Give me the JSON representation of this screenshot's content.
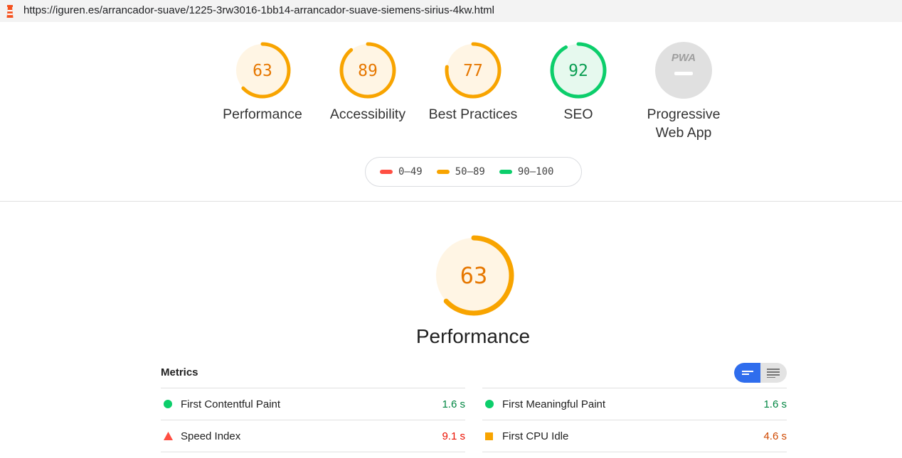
{
  "address_bar": {
    "url": "https://iguren.es/arrancador-suave/1225-3rw3016-1bb14-arrancador-suave-siemens-sirius-4kw.html"
  },
  "gauges": [
    {
      "score": "63",
      "label": "Performance",
      "fraction": 0.63,
      "color": "#f8a400",
      "bg": "#fff5e4"
    },
    {
      "score": "89",
      "label": "Accessibility",
      "fraction": 0.89,
      "color": "#f8a400",
      "bg": "#fff5e4"
    },
    {
      "score": "77",
      "label": "Best Practices",
      "fraction": 0.77,
      "color": "#f8a400",
      "bg": "#fff5e4"
    },
    {
      "score": "92",
      "label": "SEO",
      "fraction": 0.92,
      "color": "#0cce6b",
      "bg": "#e6f9ee"
    }
  ],
  "pwa": {
    "badge": "PWA",
    "label_line1": "Progressive",
    "label_line2": "Web App"
  },
  "legend": [
    {
      "range": "0–49",
      "color": "#ff4e42"
    },
    {
      "range": "50–89",
      "color": "#f8a400"
    },
    {
      "range": "90–100",
      "color": "#0cce6b"
    }
  ],
  "performance": {
    "score": "63",
    "title": "Performance",
    "fraction": 0.63
  },
  "metrics": {
    "heading": "Metrics",
    "items": [
      {
        "name": "First Contentful Paint",
        "value": "1.6 s",
        "status": "pass",
        "color": "#018642"
      },
      {
        "name": "First Meaningful Paint",
        "value": "1.6 s",
        "status": "pass",
        "color": "#018642"
      },
      {
        "name": "Speed Index",
        "value": "9.1 s",
        "status": "fail",
        "color": "#eb0f00"
      },
      {
        "name": "First CPU Idle",
        "value": "4.6 s",
        "status": "average",
        "color": "#d04900"
      }
    ]
  }
}
